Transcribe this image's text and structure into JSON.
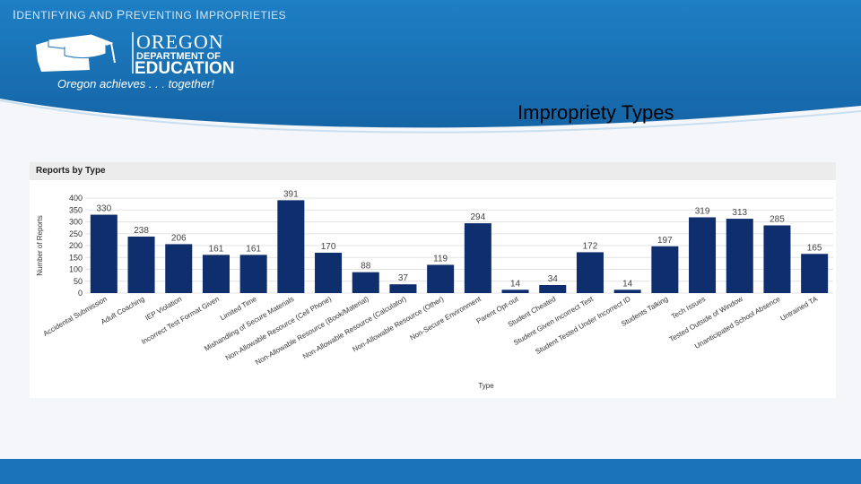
{
  "slide": {
    "title_part1_cap": "I",
    "title_part1_rest": "DENTIFYING AND ",
    "title_part2_cap": "P",
    "title_part2_rest": "REVENTING ",
    "title_part3_cap": "I",
    "title_part3_rest": "MPROPRIETIES",
    "heading": "Impropriety Types"
  },
  "logo": {
    "line1": "OREGON",
    "line2": "DEPARTMENT OF",
    "line3": "EDUCATION",
    "tagline": "Oregon achieves . . . together!"
  },
  "colors": {
    "header_blue": "#1a73b8",
    "bar_color": "#0f2e6e"
  },
  "chart_data": {
    "type": "bar",
    "title": "Reports by Type",
    "xlabel": "Type",
    "ylabel": "Number of Reports",
    "ylim": [
      0,
      400
    ],
    "yticks": [
      0,
      50,
      100,
      150,
      200,
      250,
      300,
      350,
      400
    ],
    "grid": true,
    "categories": [
      "Accidental Submission",
      "Adult Coaching",
      "IEP Violation",
      "Incorrect Test Format Given",
      "Limited Time",
      "Mishandling of Secure Materials",
      "Non-Allowable Resource (Cell Phone)",
      "Non-Allowable Resource (Book/Material)",
      "Non-Allowable Resource (Calculator)",
      "Non-Allowable Resource (Other)",
      "Non-Secure Environment",
      "Parent Opt-out",
      "Student Cheated",
      "Student Given Incorrect Test",
      "Student Tested Under Incorrect ID",
      "Students Talking",
      "Tech Issues",
      "Tested Outside of Window",
      "Unanticipated School Absence",
      "Untrained TA"
    ],
    "values": [
      330,
      238,
      206,
      161,
      161,
      391,
      170,
      88,
      37,
      119,
      294,
      14,
      34,
      172,
      14,
      197,
      319,
      313,
      285,
      165
    ]
  }
}
